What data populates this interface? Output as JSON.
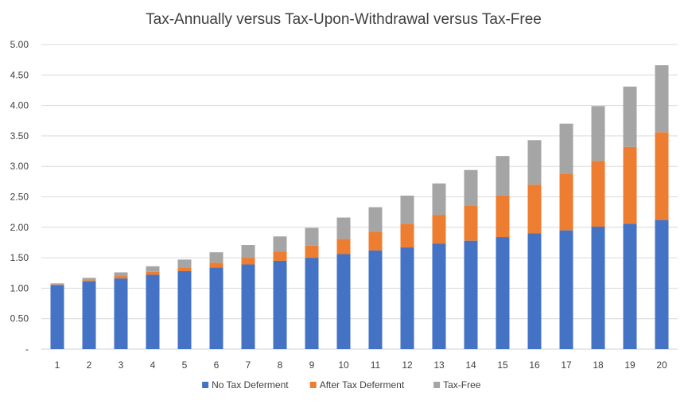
{
  "chart_data": {
    "type": "bar",
    "stacked": true,
    "title": "Tax-Annually versus Tax-Upon-Withdrawal versus Tax-Free",
    "xlabel": "",
    "ylabel": "",
    "ylim": [
      0,
      5
    ],
    "yticks": [
      "-",
      "0.50",
      "1.00",
      "1.50",
      "2.00",
      "2.50",
      "3.00",
      "3.50",
      "4.00",
      "4.50",
      "5.00"
    ],
    "grid": true,
    "legend_position": "bottom",
    "categories": [
      "1",
      "2",
      "3",
      "4",
      "5",
      "6",
      "7",
      "8",
      "9",
      "10",
      "11",
      "12",
      "13",
      "14",
      "15",
      "16",
      "17",
      "18",
      "19",
      "20"
    ],
    "series": [
      {
        "name": "No Tax Deferment",
        "color": "#4472C4",
        "values": [
          1.05,
          1.11,
          1.16,
          1.22,
          1.28,
          1.34,
          1.39,
          1.45,
          1.5,
          1.56,
          1.62,
          1.67,
          1.73,
          1.78,
          1.84,
          1.9,
          1.95,
          2.01,
          2.06,
          2.12
        ]
      },
      {
        "name": "After Tax Deferment",
        "color": "#ED7D31",
        "values": [
          0.01,
          0.02,
          0.04,
          0.05,
          0.06,
          0.08,
          0.11,
          0.15,
          0.2,
          0.25,
          0.31,
          0.39,
          0.47,
          0.57,
          0.68,
          0.8,
          0.93,
          1.08,
          1.26,
          1.44
        ]
      },
      {
        "name": "Tax-Free",
        "color": "#A5A5A5",
        "values": [
          0.02,
          0.04,
          0.06,
          0.09,
          0.13,
          0.17,
          0.21,
          0.25,
          0.29,
          0.35,
          0.4,
          0.46,
          0.52,
          0.59,
          0.65,
          0.73,
          0.82,
          0.9,
          0.99,
          1.1
        ]
      }
    ]
  }
}
